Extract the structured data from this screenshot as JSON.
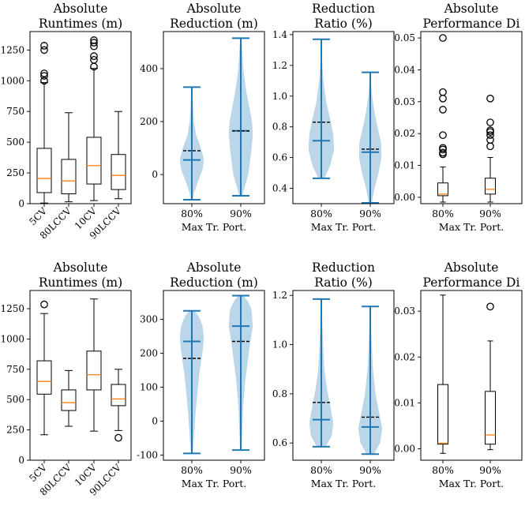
{
  "chart_data": [
    {
      "type": "box",
      "row": 1,
      "title": [
        "Absolute",
        "Runtimes (m)"
      ],
      "categories": [
        "5CV",
        "80LCCV",
        "10CV",
        "90LCCV"
      ],
      "xlabel": "",
      "ylim": [
        0,
        1400
      ],
      "yticks": [
        0,
        250,
        500,
        750,
        1000,
        1250
      ],
      "boxes": [
        {
          "whislo": 5,
          "q1": 90,
          "med": 205,
          "q3": 450,
          "whishi": 985,
          "fliers": [
            1000,
            1040,
            1060,
            1250,
            1285
          ]
        },
        {
          "whislo": 15,
          "q1": 80,
          "med": 185,
          "q3": 360,
          "whishi": 740,
          "fliers": []
        },
        {
          "whislo": 25,
          "q1": 160,
          "med": 310,
          "q3": 540,
          "whishi": 1100,
          "fliers": [
            1115,
            1170,
            1200,
            1280,
            1310,
            1330
          ]
        },
        {
          "whislo": 40,
          "q1": 115,
          "med": 230,
          "q3": 400,
          "whishi": 750,
          "fliers": []
        }
      ]
    },
    {
      "type": "violin",
      "row": 1,
      "title": [
        "Absolute",
        "Reduction (m)"
      ],
      "categories": [
        "80%",
        "90%"
      ],
      "xlabel": "Max Tr. Port.",
      "ylim": [
        -110,
        540
      ],
      "yticks": [
        0,
        200,
        400
      ],
      "series": [
        {
          "min": -95,
          "max": 330,
          "median": 55,
          "mean": 90,
          "density": [
            [
              -95,
              0.05
            ],
            [
              -60,
              0.2
            ],
            [
              -20,
              0.45
            ],
            [
              20,
              0.72
            ],
            [
              60,
              0.8
            ],
            [
              100,
              0.6
            ],
            [
              150,
              0.28
            ],
            [
              200,
              0.14
            ],
            [
              260,
              0.08
            ],
            [
              300,
              0.06
            ],
            [
              330,
              0.03
            ]
          ]
        },
        {
          "min": -80,
          "max": 515,
          "median": 165,
          "mean": 165,
          "density": [
            [
              -80,
              0.1
            ],
            [
              -40,
              0.3
            ],
            [
              0,
              0.5
            ],
            [
              50,
              0.62
            ],
            [
              100,
              0.72
            ],
            [
              150,
              0.8
            ],
            [
              200,
              0.75
            ],
            [
              260,
              0.55
            ],
            [
              320,
              0.35
            ],
            [
              380,
              0.2
            ],
            [
              440,
              0.12
            ],
            [
              515,
              0.04
            ]
          ]
        }
      ]
    },
    {
      "type": "violin",
      "row": 1,
      "title": [
        "Reduction",
        "Ratio (%)"
      ],
      "categories": [
        "80%",
        "90%"
      ],
      "xlabel": "Max Tr. Port.",
      "ylim": [
        0.3,
        1.42
      ],
      "yticks": [
        0.4,
        0.6,
        0.8,
        1.0,
        1.2,
        1.4
      ],
      "series": [
        {
          "min": 0.465,
          "max": 1.37,
          "median": 0.71,
          "mean": 0.83,
          "density": [
            [
              0.465,
              0.2
            ],
            [
              0.55,
              0.6
            ],
            [
              0.65,
              0.85
            ],
            [
              0.75,
              0.8
            ],
            [
              0.85,
              0.6
            ],
            [
              0.95,
              0.35
            ],
            [
              1.05,
              0.2
            ],
            [
              1.15,
              0.1
            ],
            [
              1.25,
              0.05
            ],
            [
              1.37,
              0.02
            ]
          ]
        },
        {
          "min": 0.305,
          "max": 1.155,
          "median": 0.635,
          "mean": 0.655,
          "density": [
            [
              0.305,
              0.1
            ],
            [
              0.4,
              0.28
            ],
            [
              0.5,
              0.55
            ],
            [
              0.6,
              0.75
            ],
            [
              0.7,
              0.72
            ],
            [
              0.8,
              0.48
            ],
            [
              0.9,
              0.28
            ],
            [
              1.0,
              0.12
            ],
            [
              1.1,
              0.05
            ],
            [
              1.155,
              0.02
            ]
          ]
        }
      ]
    },
    {
      "type": "box",
      "row": 1,
      "title": [
        "Absolute",
        "Performance Di"
      ],
      "categories": [
        "80%",
        "90%"
      ],
      "xlabel": "Max Tr. Port.",
      "ylim": [
        -0.002,
        0.052
      ],
      "yticks": [
        0.0,
        0.01,
        0.02,
        0.03,
        0.04,
        0.05
      ],
      "boxes": [
        {
          "whislo": -0.0015,
          "q1": 0.0005,
          "med": 0.001,
          "q3": 0.0045,
          "whishi": 0.0095,
          "fliers": [
            0.0135,
            0.014,
            0.015,
            0.0155,
            0.0195,
            0.0275,
            0.031,
            0.033,
            0.05
          ]
        },
        {
          "whislo": -0.0015,
          "q1": 0.001,
          "med": 0.0025,
          "q3": 0.006,
          "whishi": 0.0125,
          "fliers": [
            0.016,
            0.018,
            0.0195,
            0.0205,
            0.021,
            0.0235,
            0.031
          ]
        }
      ]
    },
    {
      "type": "box",
      "row": 2,
      "title": [
        "Absolute",
        "Runtimes (m)"
      ],
      "categories": [
        "5CV",
        "80LCCV",
        "10CV",
        "90LCCV"
      ],
      "xlabel": "",
      "ylim": [
        0,
        1400
      ],
      "yticks": [
        0,
        250,
        500,
        750,
        1000,
        1250
      ],
      "boxes": [
        {
          "whislo": 210,
          "q1": 545,
          "med": 650,
          "q3": 820,
          "whishi": 1210,
          "fliers": [
            1285
          ]
        },
        {
          "whislo": 280,
          "q1": 410,
          "med": 475,
          "q3": 580,
          "whishi": 740,
          "fliers": []
        },
        {
          "whislo": 240,
          "q1": 580,
          "med": 705,
          "q3": 900,
          "whishi": 1330,
          "fliers": []
        },
        {
          "whislo": 245,
          "q1": 450,
          "med": 505,
          "q3": 625,
          "whishi": 750,
          "fliers": [
            185
          ]
        }
      ]
    },
    {
      "type": "violin",
      "row": 2,
      "title": [
        "Absolute",
        "Reduction (m)"
      ],
      "categories": [
        "80%",
        "90%"
      ],
      "xlabel": "Max Tr. Port.",
      "ylim": [
        -115,
        385
      ],
      "yticks": [
        -100,
        0,
        100,
        200,
        300
      ],
      "series": [
        {
          "min": -95,
          "max": 325,
          "median": 235,
          "mean": 185,
          "density": [
            [
              -95,
              0.06
            ],
            [
              -40,
              0.15
            ],
            [
              20,
              0.24
            ],
            [
              80,
              0.36
            ],
            [
              140,
              0.5
            ],
            [
              200,
              0.7
            ],
            [
              240,
              0.8
            ],
            [
              280,
              0.72
            ],
            [
              310,
              0.45
            ],
            [
              325,
              0.18
            ]
          ]
        },
        {
          "min": -85,
          "max": 370,
          "median": 280,
          "mean": 235,
          "density": [
            [
              -85,
              0.05
            ],
            [
              -20,
              0.1
            ],
            [
              50,
              0.17
            ],
            [
              120,
              0.3
            ],
            [
              180,
              0.48
            ],
            [
              230,
              0.62
            ],
            [
              280,
              0.8
            ],
            [
              330,
              0.72
            ],
            [
              355,
              0.45
            ],
            [
              370,
              0.15
            ]
          ]
        }
      ]
    },
    {
      "type": "violin",
      "row": 2,
      "title": [
        "Reduction",
        "Ratio (%)"
      ],
      "categories": [
        "80%",
        "90%"
      ],
      "xlabel": "Max Tr. Port.",
      "ylim": [
        0.53,
        1.22
      ],
      "yticks": [
        0.6,
        0.8,
        1.0,
        1.2
      ],
      "series": [
        {
          "min": 0.585,
          "max": 1.185,
          "median": 0.695,
          "mean": 0.765,
          "density": [
            [
              0.585,
              0.3
            ],
            [
              0.63,
              0.7
            ],
            [
              0.68,
              0.8
            ],
            [
              0.75,
              0.6
            ],
            [
              0.82,
              0.38
            ],
            [
              0.9,
              0.2
            ],
            [
              1.0,
              0.12
            ],
            [
              1.1,
              0.06
            ],
            [
              1.185,
              0.02
            ]
          ]
        },
        {
          "min": 0.555,
          "max": 1.155,
          "median": 0.665,
          "mean": 0.705,
          "density": [
            [
              0.555,
              0.25
            ],
            [
              0.6,
              0.65
            ],
            [
              0.66,
              0.8
            ],
            [
              0.72,
              0.6
            ],
            [
              0.8,
              0.35
            ],
            [
              0.9,
              0.18
            ],
            [
              1.0,
              0.1
            ],
            [
              1.1,
              0.05
            ],
            [
              1.155,
              0.02
            ]
          ]
        }
      ]
    },
    {
      "type": "box",
      "row": 2,
      "title": [
        "Absolute",
        "Performance Di"
      ],
      "categories": [
        "80%",
        "90%"
      ],
      "xlabel": "Max Tr. Port.",
      "ylim": [
        -0.0025,
        0.0345
      ],
      "yticks": [
        0.0,
        0.01,
        0.02,
        0.03
      ],
      "boxes": [
        {
          "whislo": -0.001,
          "q1": 0.001,
          "med": 0.0012,
          "q3": 0.014,
          "whishi": 0.0335,
          "fliers": []
        },
        {
          "whislo": -0.0002,
          "q1": 0.001,
          "med": 0.003,
          "q3": 0.0125,
          "whishi": 0.0235,
          "fliers": [
            0.031
          ]
        }
      ]
    }
  ]
}
